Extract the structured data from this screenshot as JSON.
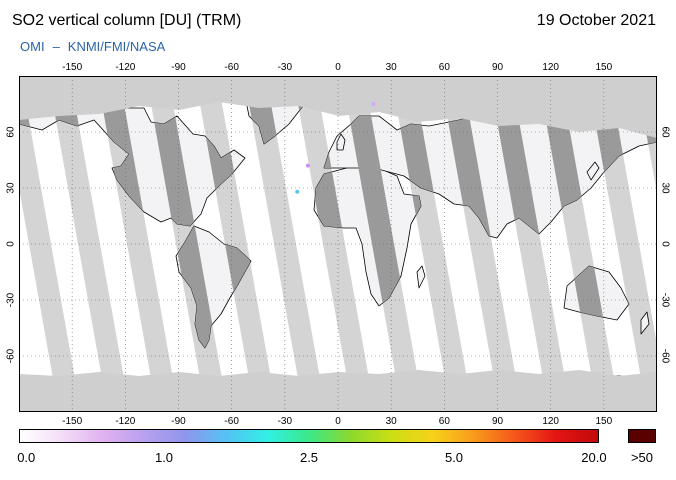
{
  "header": {
    "title": "SO2 vertical column [DU] (TRM)",
    "date": "19 October 2021",
    "credit_instrument": "OMI",
    "credit_separator": "–",
    "credit_agencies": "KNMI/FMI/NASA"
  },
  "map": {
    "projection": "equirectangular",
    "lon_range": [
      -180,
      180
    ],
    "lat_range": [
      -90,
      90
    ],
    "lon_ticks": [
      "-150",
      "-120",
      "-90",
      "-60",
      "-30",
      "0",
      "30",
      "60",
      "90",
      "120",
      "150"
    ],
    "lat_ticks": [
      "60",
      "30",
      "0",
      "-30",
      "-60"
    ],
    "grid": "dotted",
    "colors": {
      "ocean_background": "#ffffff",
      "no_data_polar": "#cfcfcf",
      "gap_swath_light": "#d4d4d4",
      "land_in_gap": "#9a9a9a",
      "coastline": "#000000"
    },
    "visible_plumes": [
      {
        "lon": -23,
        "lat": 28,
        "color": "#57c8ea"
      },
      {
        "lon": -17,
        "lat": 42,
        "color": "#cc8ff0"
      },
      {
        "lon": 20,
        "lat": 75,
        "color": "#d6a8f5"
      }
    ]
  },
  "colorbar": {
    "labels": [
      "0.0",
      "1.0",
      "2.5",
      "5.0",
      "20.0"
    ],
    "max_label": ">50",
    "max_color": "#5a0000",
    "gradient": [
      "#ffffff",
      "#f4def7",
      "#e1b2f0",
      "#b9a0f0",
      "#8f96ec",
      "#54c2f4",
      "#31f0e4",
      "#3be88a",
      "#8cd92e",
      "#ccde14",
      "#f7d21a",
      "#f89a1c",
      "#f5561a",
      "#e31414",
      "#c20a0a"
    ]
  }
}
